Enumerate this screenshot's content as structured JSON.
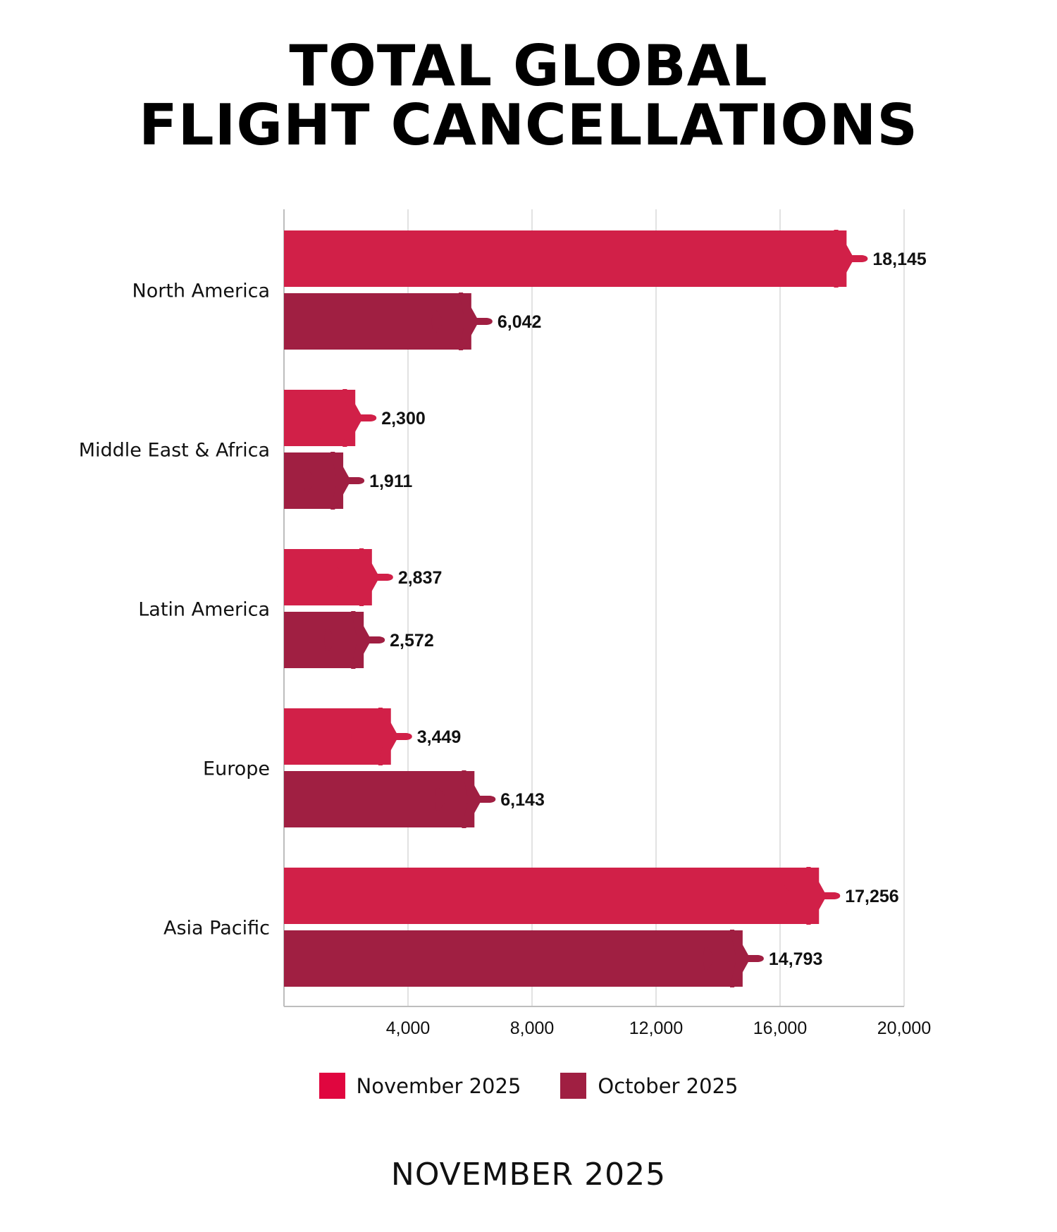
{
  "header": {
    "title_line1": "TOTAL GLOBAL",
    "title_line2": "FLIGHT CANCELLATIONS"
  },
  "colors": {
    "november": "#d12048",
    "october": "#a01f42",
    "legend_november": "#e0063f",
    "legend_october": "#a01f42",
    "grid": "#d9d9d9",
    "axis": "#bdbdbd"
  },
  "chart_data": {
    "type": "bar",
    "orientation": "horizontal",
    "title": "TOTAL GLOBAL FLIGHT CANCELLATIONS",
    "categories": [
      "North America",
      "Middle East & Africa",
      "Latin America",
      "Europe",
      "Asia Pacific"
    ],
    "series": [
      {
        "name": "November 2025",
        "values": [
          18145,
          2300,
          2837,
          3449,
          17256
        ]
      },
      {
        "name": "October 2025",
        "values": [
          6042,
          1911,
          2572,
          6143,
          14793
        ]
      }
    ],
    "value_labels": [
      [
        "18,145",
        "2,300",
        "2,837",
        "3,449",
        "17,256"
      ],
      [
        "6,042",
        "1,911",
        "2,572",
        "6,143",
        "14,793"
      ]
    ],
    "xlim": [
      0,
      20000
    ],
    "xticks": [
      4000,
      8000,
      12000,
      16000,
      20000
    ],
    "xtick_labels": [
      "4,000",
      "8,000",
      "12,000",
      "16,000",
      "20,000"
    ],
    "grid": true,
    "legend_position": "bottom-center",
    "bar_marker": "airplane-icon"
  },
  "legend": {
    "items": [
      {
        "label": "November 2025"
      },
      {
        "label": "October 2025"
      }
    ]
  },
  "footer": {
    "date_label": "NOVEMBER 2025"
  }
}
